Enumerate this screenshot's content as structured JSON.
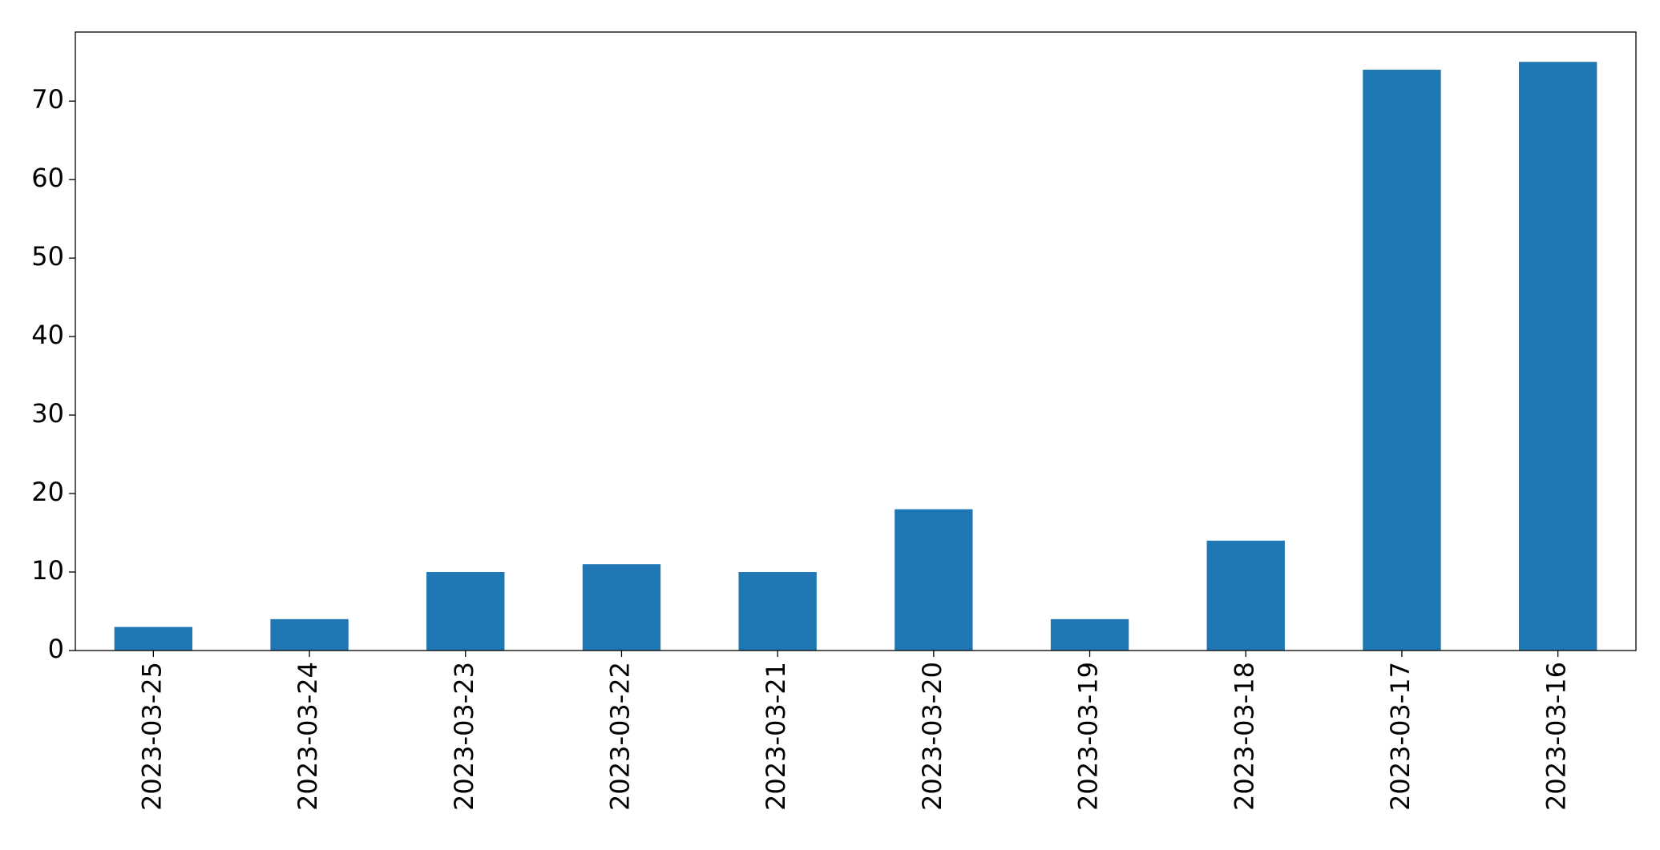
{
  "chart_data": {
    "type": "bar",
    "categories": [
      "2023-03-25",
      "2023-03-24",
      "2023-03-23",
      "2023-03-22",
      "2023-03-21",
      "2023-03-20",
      "2023-03-19",
      "2023-03-18",
      "2023-03-17",
      "2023-03-16"
    ],
    "values": [
      3,
      4,
      10,
      11,
      10,
      18,
      4,
      14,
      74,
      75
    ],
    "color": "#1f77b4",
    "ylim": [
      0,
      78.8
    ],
    "yticks": [
      0,
      10,
      20,
      30,
      40,
      50,
      60,
      70
    ],
    "grid": false
  }
}
